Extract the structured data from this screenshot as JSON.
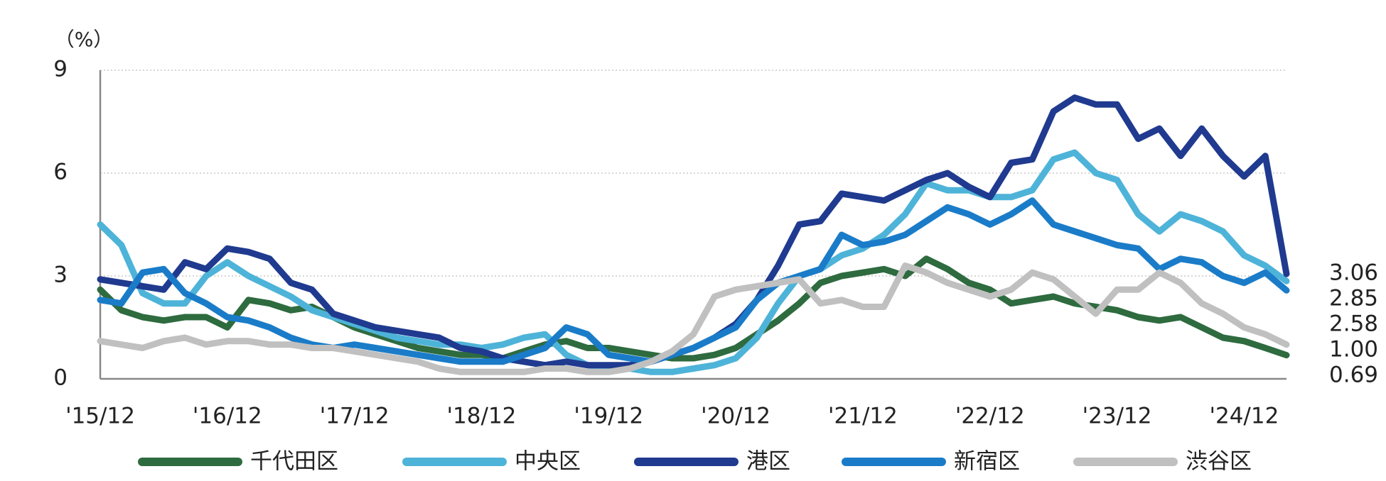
{
  "chart_data": {
    "type": "line",
    "y_unit": "（%）",
    "categories": [
      "'15/12",
      null,
      null,
      null,
      null,
      null,
      "'16/12",
      null,
      null,
      null,
      null,
      null,
      "'17/12",
      null,
      null,
      null,
      null,
      null,
      "'18/12",
      null,
      null,
      null,
      null,
      null,
      "'19/12",
      null,
      null,
      null,
      null,
      null,
      "'20/12",
      null,
      null,
      null,
      null,
      null,
      "'21/12",
      null,
      null,
      null,
      null,
      null,
      "'22/12",
      null,
      null,
      null,
      null,
      null,
      "'23/12",
      null,
      null,
      null,
      null,
      null,
      "'24/12",
      null,
      null
    ],
    "ylim": [
      0,
      9
    ],
    "yticks": [
      0,
      3,
      6,
      9
    ],
    "grid": true,
    "series": [
      {
        "name": "千代田区",
        "color": "#2e6b3f",
        "end_label": "0.69",
        "values": [
          2.6,
          2.0,
          1.8,
          1.7,
          1.8,
          1.8,
          1.5,
          2.3,
          2.2,
          2.0,
          2.1,
          1.8,
          1.5,
          1.3,
          1.1,
          0.9,
          0.8,
          0.7,
          0.7,
          0.6,
          0.8,
          1.0,
          1.1,
          0.9,
          0.9,
          0.8,
          0.7,
          0.6,
          0.6,
          0.7,
          0.9,
          1.3,
          1.7,
          2.2,
          2.8,
          3.0,
          3.1,
          3.2,
          3.0,
          3.5,
          3.2,
          2.8,
          2.6,
          2.2,
          2.3,
          2.4,
          2.2,
          2.1,
          2.0,
          1.8,
          1.7,
          1.8,
          1.5,
          1.2,
          1.1,
          0.9,
          0.69
        ]
      },
      {
        "name": "中央区",
        "color": "#4eb3d8",
        "end_label": "2.85",
        "values": [
          4.5,
          3.9,
          2.5,
          2.2,
          2.2,
          3.0,
          3.4,
          3.0,
          2.7,
          2.4,
          2.0,
          1.8,
          1.6,
          1.4,
          1.2,
          1.1,
          1.0,
          1.0,
          0.9,
          1.0,
          1.2,
          1.3,
          0.7,
          0.4,
          0.3,
          0.3,
          0.2,
          0.2,
          0.3,
          0.4,
          0.6,
          1.2,
          2.2,
          3.0,
          3.2,
          3.6,
          3.8,
          4.2,
          4.8,
          5.7,
          5.5,
          5.5,
          5.3,
          5.3,
          5.5,
          6.4,
          6.6,
          6.0,
          5.8,
          4.8,
          4.3,
          4.8,
          4.6,
          4.3,
          3.6,
          3.3,
          2.85
        ]
      },
      {
        "name": "港区",
        "color": "#1f3a8f",
        "end_label": "3.06",
        "values": [
          2.9,
          2.8,
          2.7,
          2.6,
          3.4,
          3.2,
          3.8,
          3.7,
          3.5,
          2.8,
          2.6,
          1.9,
          1.7,
          1.5,
          1.4,
          1.3,
          1.2,
          0.9,
          0.8,
          0.6,
          0.5,
          0.4,
          0.5,
          0.4,
          0.4,
          0.4,
          0.5,
          0.7,
          0.9,
          1.2,
          1.6,
          2.3,
          3.3,
          4.5,
          4.6,
          5.4,
          5.3,
          5.2,
          5.5,
          5.8,
          6.0,
          5.6,
          5.3,
          6.3,
          6.4,
          7.8,
          8.2,
          8.0,
          8.0,
          7.0,
          7.3,
          6.5,
          7.3,
          6.5,
          5.9,
          6.5,
          3.06
        ]
      },
      {
        "name": "新宿区",
        "color": "#1a7cc8",
        "end_label": "2.58",
        "values": [
          2.3,
          2.2,
          3.1,
          3.2,
          2.5,
          2.2,
          1.8,
          1.7,
          1.5,
          1.2,
          1.0,
          0.9,
          1.0,
          0.9,
          0.8,
          0.7,
          0.6,
          0.5,
          0.5,
          0.5,
          0.7,
          0.9,
          1.5,
          1.3,
          0.7,
          0.6,
          0.5,
          0.7,
          0.9,
          1.2,
          1.5,
          2.3,
          2.8,
          3.0,
          3.2,
          4.2,
          3.9,
          4.0,
          4.2,
          4.6,
          5.0,
          4.8,
          4.5,
          4.8,
          5.2,
          4.5,
          4.3,
          4.1,
          3.9,
          3.8,
          3.2,
          3.5,
          3.4,
          3.0,
          2.8,
          3.1,
          2.58
        ]
      },
      {
        "name": "渋谷区",
        "color": "#c0c0c0",
        "end_label": "1.00",
        "values": [
          1.1,
          1.0,
          0.9,
          1.1,
          1.2,
          1.0,
          1.1,
          1.1,
          1.0,
          1.0,
          0.9,
          0.9,
          0.8,
          0.7,
          0.6,
          0.5,
          0.3,
          0.2,
          0.2,
          0.2,
          0.2,
          0.3,
          0.3,
          0.2,
          0.2,
          0.3,
          0.5,
          0.8,
          1.3,
          2.4,
          2.6,
          2.7,
          2.8,
          2.9,
          2.2,
          2.3,
          2.1,
          2.1,
          3.3,
          3.1,
          2.8,
          2.6,
          2.4,
          2.6,
          3.1,
          2.9,
          2.4,
          1.9,
          2.6,
          2.6,
          3.1,
          2.8,
          2.2,
          1.9,
          1.5,
          1.3,
          1.0
        ]
      }
    ]
  }
}
